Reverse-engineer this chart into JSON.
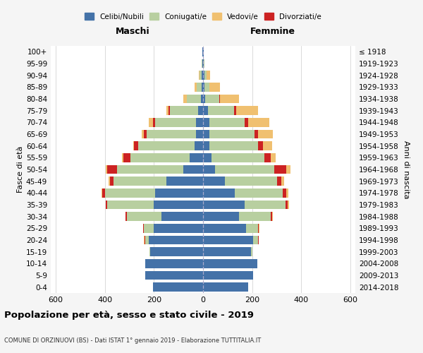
{
  "age_groups": [
    "0-4",
    "5-9",
    "10-14",
    "15-19",
    "20-24",
    "25-29",
    "30-34",
    "35-39",
    "40-44",
    "45-49",
    "50-54",
    "55-59",
    "60-64",
    "65-69",
    "70-74",
    "75-79",
    "80-84",
    "85-89",
    "90-94",
    "95-99",
    "100+"
  ],
  "birth_years": [
    "2014-2018",
    "2009-2013",
    "2004-2008",
    "1999-2003",
    "1994-1998",
    "1989-1993",
    "1984-1988",
    "1979-1983",
    "1974-1978",
    "1969-1973",
    "1964-1968",
    "1959-1963",
    "1954-1958",
    "1949-1953",
    "1944-1948",
    "1939-1943",
    "1934-1938",
    "1929-1933",
    "1924-1928",
    "1919-1923",
    "≤ 1918"
  ],
  "maschi": {
    "celibi": [
      205,
      235,
      235,
      215,
      220,
      200,
      170,
      200,
      195,
      150,
      80,
      55,
      35,
      30,
      30,
      20,
      10,
      5,
      5,
      3,
      2
    ],
    "coniugati": [
      0,
      0,
      1,
      3,
      15,
      40,
      140,
      190,
      205,
      215,
      270,
      240,
      230,
      200,
      165,
      115,
      55,
      20,
      8,
      2,
      0
    ],
    "vedovi": [
      0,
      0,
      0,
      0,
      2,
      2,
      2,
      2,
      3,
      5,
      5,
      5,
      5,
      10,
      15,
      10,
      15,
      10,
      3,
      1,
      0
    ],
    "divorziati": [
      0,
      0,
      0,
      0,
      3,
      3,
      5,
      5,
      10,
      15,
      40,
      30,
      15,
      10,
      10,
      5,
      0,
      0,
      0,
      0,
      0
    ]
  },
  "femmine": {
    "nubili": [
      185,
      205,
      220,
      195,
      205,
      175,
      145,
      170,
      130,
      90,
      50,
      35,
      25,
      25,
      25,
      20,
      10,
      5,
      5,
      3,
      2
    ],
    "coniugate": [
      0,
      0,
      2,
      5,
      20,
      50,
      130,
      165,
      195,
      210,
      240,
      215,
      200,
      185,
      145,
      105,
      55,
      20,
      8,
      2,
      0
    ],
    "vedove": [
      0,
      0,
      0,
      0,
      1,
      2,
      3,
      5,
      8,
      10,
      15,
      20,
      35,
      60,
      85,
      90,
      75,
      45,
      15,
      2,
      0
    ],
    "divorziate": [
      0,
      0,
      0,
      0,
      2,
      3,
      5,
      10,
      15,
      20,
      50,
      25,
      20,
      15,
      15,
      10,
      5,
      0,
      0,
      0,
      0
    ]
  },
  "colors": {
    "celibi_nubili": "#4472a8",
    "coniugati": "#b8cfa0",
    "vedovi": "#f0c070",
    "divorziati": "#cc2222"
  },
  "xlim": 620,
  "title": "Popolazione per età, sesso e stato civile - 2019",
  "subtitle": "COMUNE DI ORZINUOVI (BS) - Dati ISTAT 1° gennaio 2019 - Elaborazione TUTTITALIA.IT",
  "ylabel_left": "Fasce di età",
  "ylabel_right": "Anni di nascita",
  "xlabel_left": "Maschi",
  "xlabel_right": "Femmine",
  "bg_color": "#f5f5f5",
  "plot_bg": "#ffffff"
}
